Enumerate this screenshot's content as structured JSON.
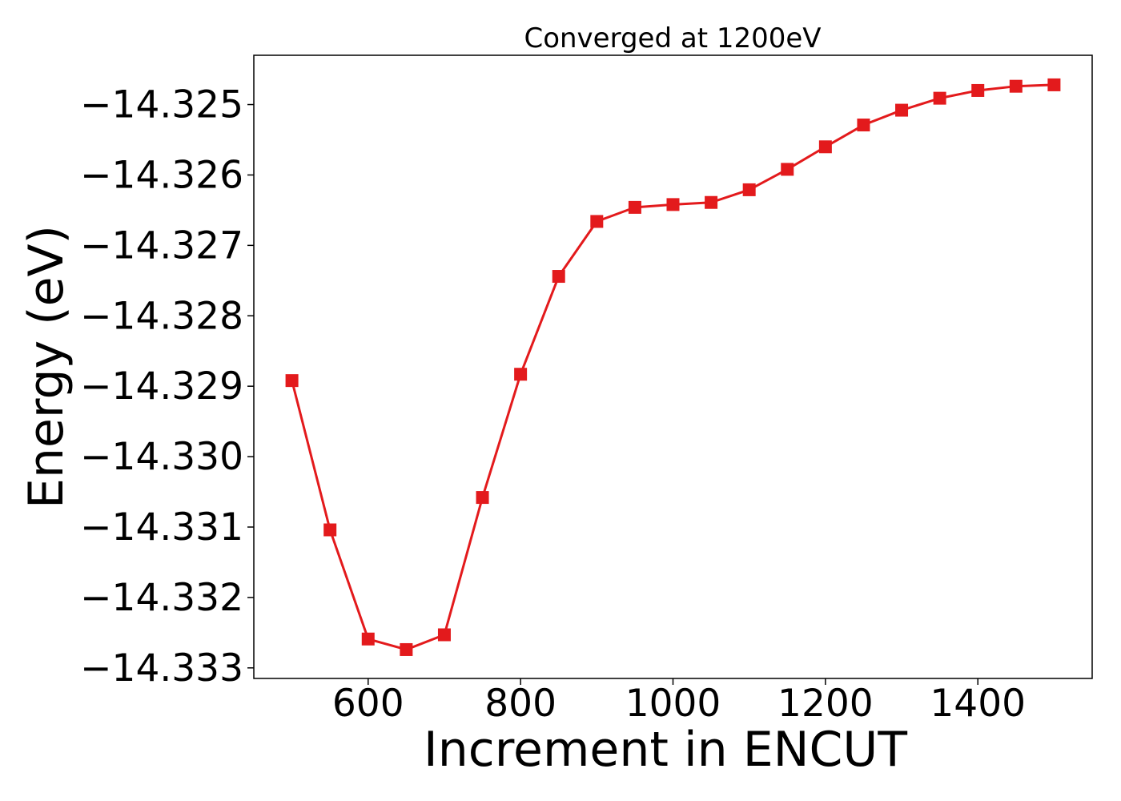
{
  "chart_data": {
    "type": "line",
    "title": "Converged at 1200eV",
    "xlabel": "Increment in ENCUT",
    "ylabel": "Energy (eV)",
    "x": [
      500,
      550,
      600,
      650,
      700,
      750,
      800,
      850,
      900,
      950,
      1000,
      1050,
      1100,
      1150,
      1200,
      1250,
      1300,
      1350,
      1400,
      1450,
      1500
    ],
    "series": [
      {
        "values": [
          -14.32892,
          -14.33104,
          -14.33259,
          -14.33274,
          -14.33253,
          -14.33058,
          -14.32883,
          -14.32744,
          -14.32666,
          -14.32646,
          -14.32642,
          -14.32639,
          -14.32621,
          -14.32592,
          -14.3256,
          -14.32529,
          -14.32508,
          -14.32491,
          -14.3248,
          -14.32474,
          -14.32472
        ],
        "color": "#e31a1c",
        "marker": "square"
      }
    ],
    "xlim": [
      450,
      1550
    ],
    "ylim": [
      -14.33315,
      -14.3243
    ],
    "xticks": [
      600,
      800,
      1000,
      1200,
      1400
    ],
    "xtick_labels": [
      "600",
      "800",
      "1000",
      "1200",
      "1400"
    ],
    "yticks": [
      -14.325,
      -14.326,
      -14.327,
      -14.328,
      -14.329,
      -14.33,
      -14.331,
      -14.332,
      -14.333
    ],
    "ytick_labels": [
      "−14.325",
      "−14.326",
      "−14.327",
      "−14.328",
      "−14.329",
      "−14.330",
      "−14.331",
      "−14.332",
      "−14.333"
    ],
    "grid": false,
    "legend": "none"
  }
}
